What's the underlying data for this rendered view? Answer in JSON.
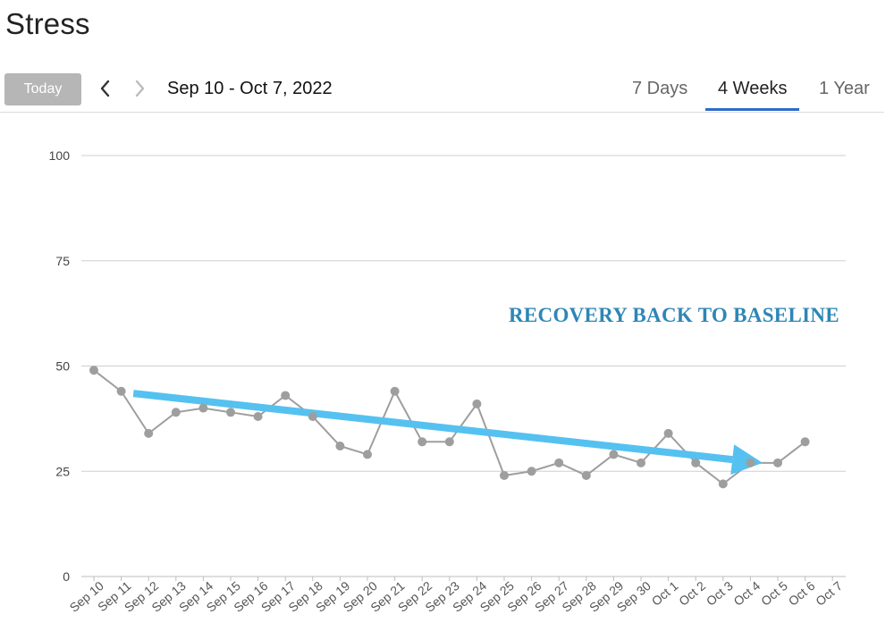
{
  "page": {
    "title": "Stress"
  },
  "toolbar": {
    "today_label": "Today",
    "prev_icon": "chevron-left-icon",
    "next_icon": "chevron-right-icon",
    "date_range": "Sep 10 - Oct 7, 2022",
    "tabs": [
      {
        "label": "7 Days",
        "active": false
      },
      {
        "label": "4 Weeks",
        "active": true
      },
      {
        "label": "1 Year",
        "active": false
      }
    ],
    "accent_color": "#2e6bc6"
  },
  "annotation": {
    "text": "RECOVERY BACK TO BASELINE",
    "color": "#2e86b6",
    "arrow_color": "#55c1f0"
  },
  "chart_data": {
    "type": "line",
    "title": "",
    "xlabel": "",
    "ylabel": "",
    "ylim": [
      0,
      100
    ],
    "yticks": [
      0,
      25,
      50,
      75,
      100
    ],
    "grid": true,
    "line_color": "#9e9e9e",
    "categories": [
      "Sep 10",
      "Sep 11",
      "Sep 12",
      "Sep 13",
      "Sep 14",
      "Sep 15",
      "Sep 16",
      "Sep 17",
      "Sep 18",
      "Sep 19",
      "Sep 20",
      "Sep 21",
      "Sep 22",
      "Sep 23",
      "Sep 24",
      "Sep 25",
      "Sep 26",
      "Sep 27",
      "Sep 28",
      "Sep 29",
      "Sep 30",
      "Oct 1",
      "Oct 2",
      "Oct 3",
      "Oct 4",
      "Oct 5",
      "Oct 6",
      "Oct 7"
    ],
    "values": [
      49,
      44,
      34,
      39,
      40,
      39,
      38,
      43,
      38,
      31,
      29,
      44,
      32,
      32,
      41,
      24,
      25,
      27,
      24,
      29,
      27,
      34,
      27,
      22,
      27,
      27,
      32,
      null
    ],
    "trend_arrow": {
      "from": {
        "x": "Sep 12",
        "y": 43.5
      },
      "to": {
        "x": "Oct 5",
        "y": 27
      }
    }
  }
}
